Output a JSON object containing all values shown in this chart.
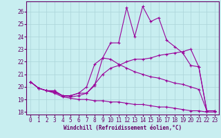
{
  "title": "",
  "xlabel": "Windchill (Refroidissement éolien,°C)",
  "ylabel": "",
  "bg_color": "#c8eef0",
  "grid_color": "#aad4d8",
  "line_color": "#990099",
  "xlim": [
    -0.5,
    23.5
  ],
  "ylim": [
    17.8,
    26.8
  ],
  "yticks": [
    18,
    19,
    20,
    21,
    22,
    23,
    24,
    25,
    26
  ],
  "xticks": [
    0,
    1,
    2,
    3,
    4,
    5,
    6,
    7,
    8,
    9,
    10,
    11,
    12,
    13,
    14,
    15,
    16,
    17,
    18,
    19,
    20,
    21,
    22,
    23
  ],
  "lines": [
    [
      0,
      20.4,
      1,
      19.9,
      2,
      19.7,
      3,
      19.7,
      4,
      19.3,
      5,
      19.2,
      6,
      19.3,
      7,
      19.5,
      8,
      20.1,
      9,
      22.3,
      10,
      23.5,
      11,
      23.5,
      12,
      26.3,
      13,
      24.0,
      14,
      26.4,
      15,
      25.2,
      16,
      25.5,
      17,
      23.7,
      18,
      23.2,
      19,
      22.7,
      20,
      21.7,
      21,
      21.6,
      22,
      18.1,
      23,
      18.1
    ],
    [
      0,
      20.4,
      1,
      19.9,
      2,
      19.7,
      3,
      19.6,
      4,
      19.3,
      5,
      19.3,
      6,
      19.5,
      7,
      19.5,
      8,
      20.2,
      9,
      21.0,
      10,
      21.5,
      11,
      21.7,
      12,
      22.0,
      13,
      22.2,
      14,
      22.2,
      15,
      22.3,
      16,
      22.5,
      17,
      22.6,
      18,
      22.7,
      19,
      22.8,
      20,
      23.0,
      21,
      21.6,
      22,
      18.1,
      23,
      18.1
    ],
    [
      0,
      20.4,
      1,
      19.9,
      2,
      19.7,
      3,
      19.6,
      4,
      19.3,
      5,
      19.3,
      6,
      19.5,
      7,
      20.0,
      8,
      21.8,
      9,
      22.3,
      10,
      22.2,
      11,
      21.8,
      12,
      21.5,
      13,
      21.2,
      14,
      21.0,
      15,
      20.8,
      16,
      20.7,
      17,
      20.5,
      18,
      20.3,
      19,
      20.2,
      20,
      20.0,
      21,
      19.8,
      22,
      18.1,
      23,
      18.1
    ],
    [
      0,
      20.4,
      1,
      19.9,
      2,
      19.7,
      3,
      19.5,
      4,
      19.2,
      5,
      19.1,
      6,
      19.0,
      7,
      19.0,
      8,
      18.9,
      9,
      18.9,
      10,
      18.8,
      11,
      18.8,
      12,
      18.7,
      13,
      18.6,
      14,
      18.6,
      15,
      18.5,
      16,
      18.4,
      17,
      18.4,
      18,
      18.3,
      19,
      18.2,
      20,
      18.1,
      21,
      18.1,
      22,
      18.0,
      23,
      18.0
    ]
  ]
}
